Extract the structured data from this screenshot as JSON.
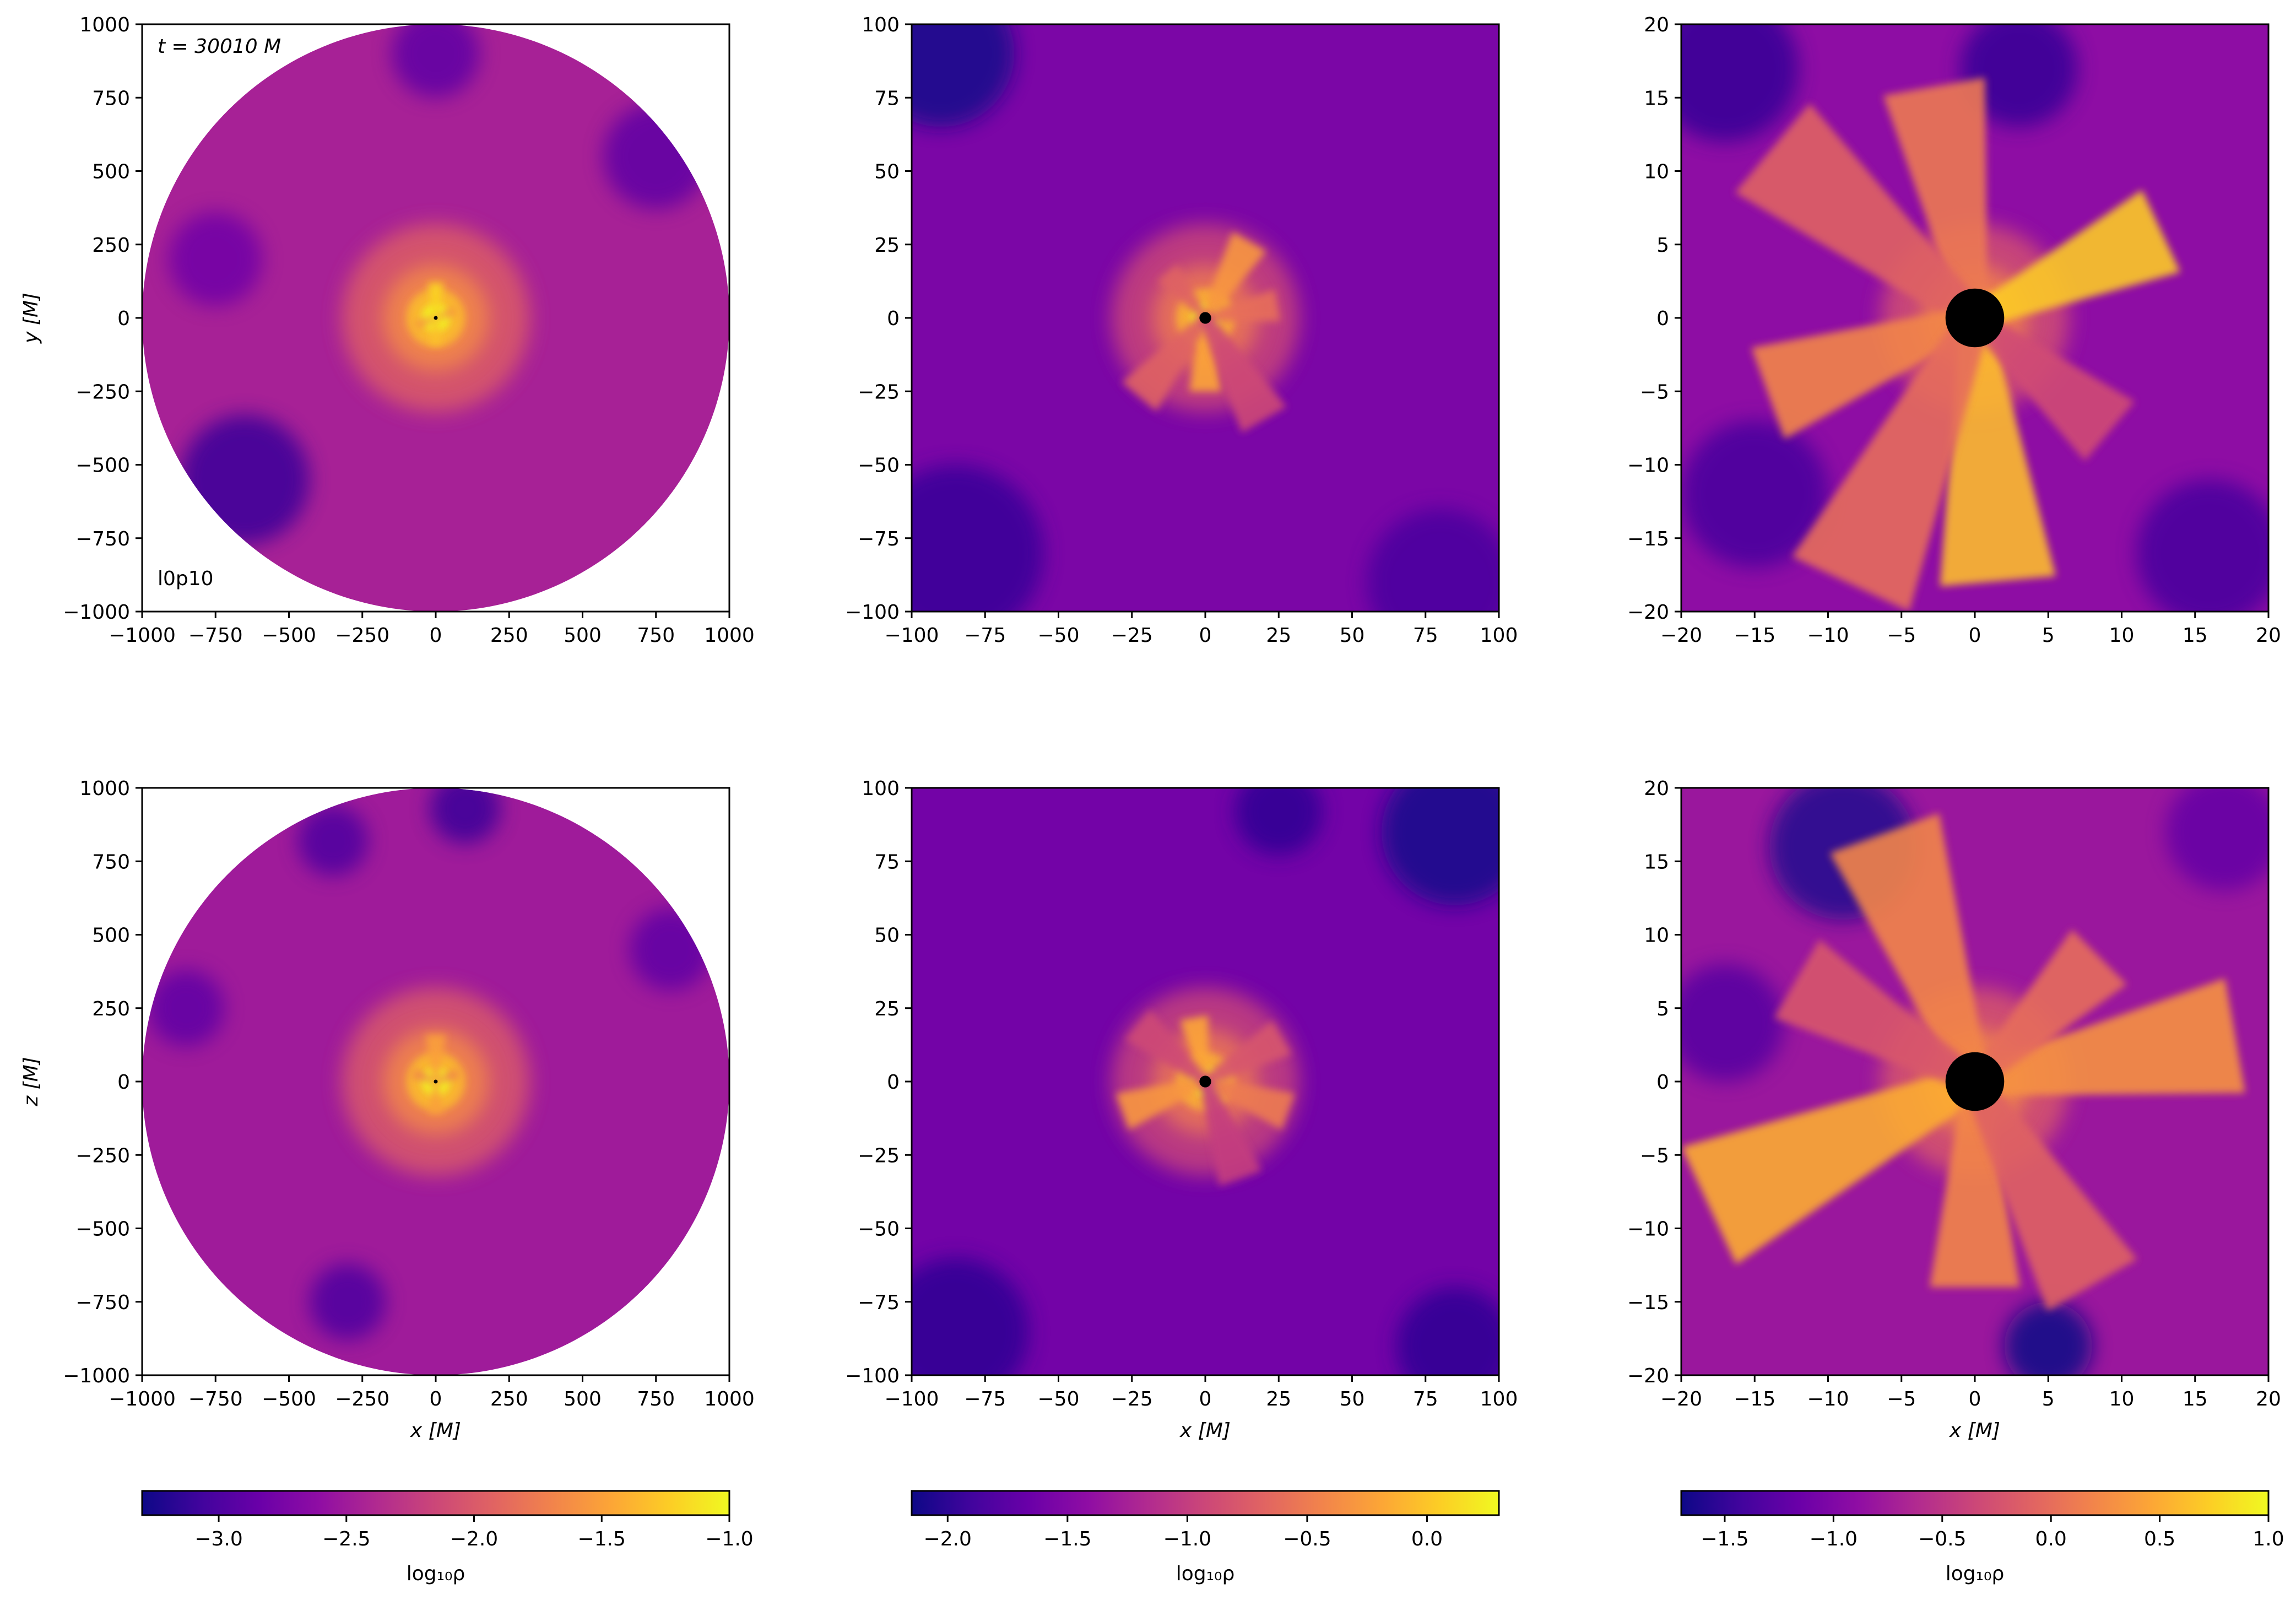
{
  "figure": {
    "quantity_label": "log₁₀ρ",
    "time_label": "t = 30010 M",
    "run_label": "l0p10",
    "x_axis_label": "x [M]",
    "y_axis_label_top": "y [M]",
    "y_axis_label_bottom": "z [M]"
  },
  "colormap": {
    "name": "plasma",
    "stops": [
      "#0d0887",
      "#41049d",
      "#6a00a8",
      "#8f0da4",
      "#b12a90",
      "#cc4778",
      "#e16462",
      "#f2844b",
      "#fca636",
      "#fcce25",
      "#f0f921"
    ],
    "black_hole_color": "#000000",
    "background": "#ffffff"
  },
  "chart_data": [
    {
      "type": "heatmap",
      "panel": "top-left",
      "plane": "x-y",
      "xlabel": "",
      "ylabel": "y [M]",
      "xlim": [
        -1000,
        1000
      ],
      "ylim": [
        -1000,
        1000
      ],
      "xticks": [
        -1000,
        -750,
        -500,
        -250,
        0,
        250,
        500,
        750,
        1000
      ],
      "yticks": [
        -1000,
        -750,
        -500,
        -250,
        0,
        250,
        500,
        750,
        1000
      ],
      "domain_shape": "circle",
      "domain_radius": 1000,
      "black_hole_radius": 3,
      "annotations": [
        "t = 30010 M",
        "l0p10"
      ],
      "background_log_rho": -2.45,
      "peak_log_rho": -1.0,
      "streams": [
        {
          "angle_deg": 90,
          "length": 120,
          "value": -1.2
        },
        {
          "angle_deg": 270,
          "length": 90,
          "value": -1.3
        },
        {
          "angle_deg": 20,
          "length": 70,
          "value": -1.6
        },
        {
          "angle_deg": 200,
          "length": 70,
          "value": -1.6
        }
      ],
      "voids": [
        {
          "x": -650,
          "y": -550,
          "r": 220,
          "value": -3.1
        },
        {
          "x": 750,
          "y": 550,
          "r": 180,
          "value": -2.9
        },
        {
          "x": 0,
          "y": 900,
          "r": 150,
          "value": -2.9
        },
        {
          "x": -750,
          "y": 200,
          "r": 160,
          "value": -2.8
        }
      ]
    },
    {
      "type": "heatmap",
      "panel": "top-middle",
      "plane": "x-y",
      "xlabel": "",
      "ylabel": "",
      "xlim": [
        -100,
        100
      ],
      "ylim": [
        -100,
        100
      ],
      "xticks": [
        -100,
        -75,
        -50,
        -25,
        0,
        25,
        50,
        75,
        100
      ],
      "yticks": [
        -100,
        -75,
        -50,
        -25,
        0,
        25,
        50,
        75,
        100
      ],
      "domain_shape": "square",
      "black_hole_radius": 2,
      "background_log_rho": -1.55,
      "peak_log_rho": 0.3,
      "streams": [
        {
          "angle_deg": 60,
          "length": 30,
          "value": -0.3
        },
        {
          "angle_deg": 270,
          "length": 25,
          "value": -0.2
        },
        {
          "angle_deg": 10,
          "length": 25,
          "value": -0.6
        },
        {
          "angle_deg": 130,
          "length": 20,
          "value": -0.7
        },
        {
          "angle_deg": 230,
          "length": 35,
          "value": -0.7
        },
        {
          "angle_deg": 300,
          "length": 40,
          "value": -0.9
        }
      ],
      "voids": [
        {
          "x": -90,
          "y": 90,
          "r": 25,
          "value": -2.1
        },
        {
          "x": -85,
          "y": -80,
          "r": 30,
          "value": -1.95
        },
        {
          "x": 80,
          "y": -90,
          "r": 25,
          "value": -1.85
        }
      ]
    },
    {
      "type": "heatmap",
      "panel": "top-right",
      "plane": "x-y",
      "xlabel": "",
      "ylabel": "",
      "xlim": [
        -20,
        20
      ],
      "ylim": [
        -20,
        20
      ],
      "xticks": [
        -20,
        -15,
        -10,
        -5,
        0,
        5,
        10,
        15,
        20
      ],
      "yticks": [
        -20,
        -15,
        -10,
        -5,
        0,
        5,
        10,
        15,
        20
      ],
      "domain_shape": "square",
      "black_hole_radius": 2,
      "background_log_rho": -0.9,
      "peak_log_rho": 1.0,
      "streams": [
        {
          "angle_deg": 275,
          "length": 18,
          "value": 0.6
        },
        {
          "angle_deg": 25,
          "length": 14,
          "value": 0.7
        },
        {
          "angle_deg": 100,
          "length": 16,
          "value": 0.1
        },
        {
          "angle_deg": 140,
          "length": 18,
          "value": -0.1
        },
        {
          "angle_deg": 200,
          "length": 15,
          "value": 0.2
        },
        {
          "angle_deg": 245,
          "length": 20,
          "value": 0.0
        },
        {
          "angle_deg": 320,
          "length": 12,
          "value": -0.3
        }
      ],
      "voids": [
        {
          "x": -17,
          "y": 17,
          "r": 5,
          "value": -1.5
        },
        {
          "x": 3,
          "y": 17,
          "r": 4,
          "value": -1.5
        },
        {
          "x": -15,
          "y": -12,
          "r": 5,
          "value": -1.4
        },
        {
          "x": 16,
          "y": -16,
          "r": 5,
          "value": -1.4
        }
      ]
    },
    {
      "type": "heatmap",
      "panel": "bottom-left",
      "plane": "x-z",
      "xlabel": "x [M]",
      "ylabel": "z [M]",
      "xlim": [
        -1000,
        1000
      ],
      "ylim": [
        -1000,
        1000
      ],
      "xticks": [
        -1000,
        -750,
        -500,
        -250,
        0,
        250,
        500,
        750,
        1000
      ],
      "yticks": [
        -1000,
        -750,
        -500,
        -250,
        0,
        250,
        500,
        750,
        1000
      ],
      "domain_shape": "circle",
      "domain_radius": 1000,
      "black_hole_radius": 3,
      "background_log_rho": -2.5,
      "peak_log_rho": -1.0,
      "streams": [
        {
          "angle_deg": 90,
          "length": 160,
          "value": -1.5
        },
        {
          "angle_deg": 270,
          "length": 110,
          "value": -1.5
        },
        {
          "angle_deg": 160,
          "length": 80,
          "value": -1.7
        },
        {
          "angle_deg": 20,
          "length": 80,
          "value": -1.7
        }
      ],
      "voids": [
        {
          "x": 100,
          "y": 930,
          "r": 120,
          "value": -3.1
        },
        {
          "x": -350,
          "y": 820,
          "r": 120,
          "value": -3.0
        },
        {
          "x": -300,
          "y": -750,
          "r": 130,
          "value": -3.0
        },
        {
          "x": -850,
          "y": 250,
          "r": 130,
          "value": -2.9
        },
        {
          "x": 800,
          "y": 450,
          "r": 140,
          "value": -2.9
        }
      ]
    },
    {
      "type": "heatmap",
      "panel": "bottom-middle",
      "plane": "x-z",
      "xlabel": "x [M]",
      "ylabel": "",
      "xlim": [
        -100,
        100
      ],
      "ylim": [
        -100,
        100
      ],
      "xticks": [
        -100,
        -75,
        -50,
        -25,
        0,
        25,
        50,
        75,
        100
      ],
      "yticks": [
        -100,
        -75,
        -50,
        -25,
        0,
        25,
        50,
        75,
        100
      ],
      "domain_shape": "square",
      "black_hole_radius": 2,
      "background_log_rho": -1.6,
      "peak_log_rho": 0.3,
      "streams": [
        {
          "angle_deg": 100,
          "length": 22,
          "value": -0.2
        },
        {
          "angle_deg": 200,
          "length": 30,
          "value": -0.3
        },
        {
          "angle_deg": 340,
          "length": 30,
          "value": -0.5
        },
        {
          "angle_deg": 30,
          "length": 30,
          "value": -0.8
        },
        {
          "angle_deg": 140,
          "length": 30,
          "value": -0.9
        },
        {
          "angle_deg": 290,
          "length": 35,
          "value": -1.0
        }
      ],
      "voids": [
        {
          "x": 85,
          "y": 85,
          "r": 25,
          "value": -2.1
        },
        {
          "x": 25,
          "y": 92,
          "r": 15,
          "value": -2.0
        },
        {
          "x": -85,
          "y": -85,
          "r": 25,
          "value": -2.0
        },
        {
          "x": 85,
          "y": -90,
          "r": 20,
          "value": -2.0
        }
      ]
    },
    {
      "type": "heatmap",
      "panel": "bottom-right",
      "plane": "x-z",
      "xlabel": "x [M]",
      "ylabel": "",
      "xlim": [
        -20,
        20
      ],
      "ylim": [
        -20,
        20
      ],
      "xticks": [
        -20,
        -15,
        -10,
        -5,
        0,
        5,
        10,
        15,
        20
      ],
      "yticks": [
        -20,
        -15,
        -10,
        -5,
        0,
        5,
        10,
        15,
        20
      ],
      "domain_shape": "square",
      "black_hole_radius": 2,
      "background_log_rho": -0.8,
      "peak_log_rho": 1.0,
      "streams": [
        {
          "angle_deg": 205,
          "length": 20,
          "value": 0.5
        },
        {
          "angle_deg": 10,
          "length": 18,
          "value": 0.3
        },
        {
          "angle_deg": 110,
          "length": 18,
          "value": 0.2
        },
        {
          "angle_deg": 270,
          "length": 14,
          "value": 0.2
        },
        {
          "angle_deg": 300,
          "length": 16,
          "value": -0.1
        },
        {
          "angle_deg": 150,
          "length": 14,
          "value": -0.2
        },
        {
          "angle_deg": 45,
          "length": 12,
          "value": 0.0
        }
      ],
      "voids": [
        {
          "x": -9,
          "y": 16,
          "r": 5,
          "value": -1.6
        },
        {
          "x": 5,
          "y": -18,
          "r": 3,
          "value": -1.7
        },
        {
          "x": -17,
          "y": 4,
          "r": 4,
          "value": -1.3
        },
        {
          "x": 17,
          "y": 17,
          "r": 4,
          "value": -1.2
        }
      ]
    }
  ],
  "colorbars": [
    {
      "column": "left",
      "label": "log₁₀ρ",
      "vmin": -3.3,
      "vmax": -1.0,
      "ticks": [
        -3.0,
        -2.5,
        -2.0,
        -1.5,
        -1.0
      ],
      "tick_labels": [
        "−3.0",
        "−2.5",
        "−2.0",
        "−1.5",
        "−1.0"
      ]
    },
    {
      "column": "middle",
      "label": "log₁₀ρ",
      "vmin": -2.15,
      "vmax": 0.3,
      "ticks": [
        -2.0,
        -1.5,
        -1.0,
        -0.5,
        0.0
      ],
      "tick_labels": [
        "−2.0",
        "−1.5",
        "−1.0",
        "−0.5",
        "0.0"
      ]
    },
    {
      "column": "right",
      "label": "log₁₀ρ",
      "vmin": -1.7,
      "vmax": 1.0,
      "ticks": [
        -1.5,
        -1.0,
        -0.5,
        0.0,
        0.5,
        1.0
      ],
      "tick_labels": [
        "−1.5",
        "−1.0",
        "−0.5",
        "0.0",
        "0.5",
        "1.0"
      ]
    }
  ]
}
